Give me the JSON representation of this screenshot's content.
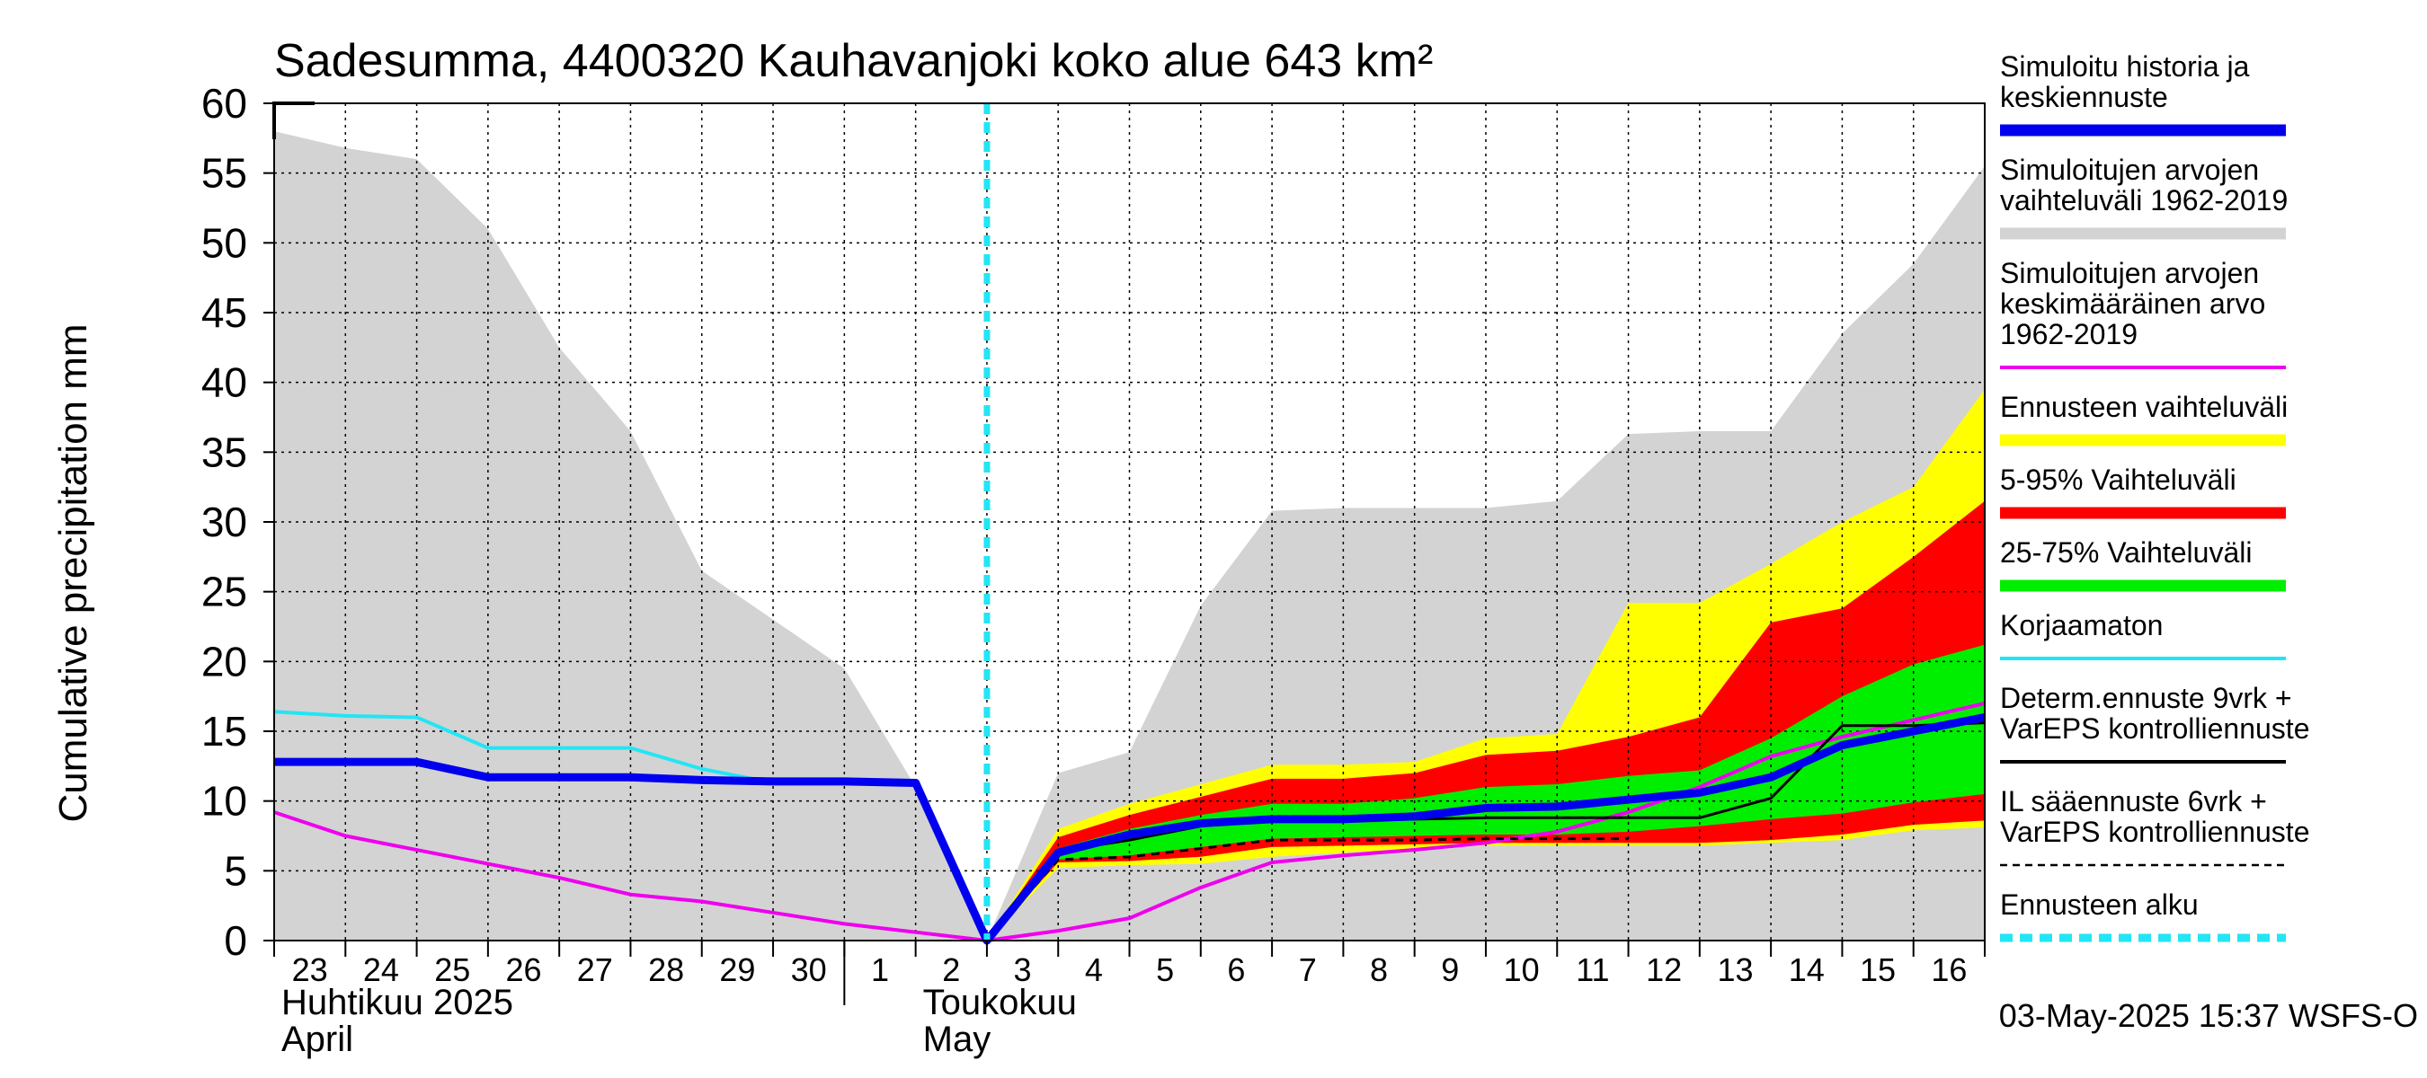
{
  "chart_data": {
    "type": "area",
    "title": "Sadesumma, 4400320 Kauhavanjoki koko alue 643 km²",
    "ylabel": "Cumulative precipitation   mm",
    "ylim": [
      0,
      60
    ],
    "yticks": [
      0,
      5,
      10,
      15,
      20,
      25,
      30,
      35,
      40,
      45,
      50,
      55,
      60
    ],
    "xlim": [
      0,
      24
    ],
    "x_tick_labels": [
      {
        "x": 0.0,
        "label": "23"
      },
      {
        "x": 1.0,
        "label": "24"
      },
      {
        "x": 2.0,
        "label": "25"
      },
      {
        "x": 3.0,
        "label": "26"
      },
      {
        "x": 4.0,
        "label": "27"
      },
      {
        "x": 5.0,
        "label": "28"
      },
      {
        "x": 6.0,
        "label": "29"
      },
      {
        "x": 7.0,
        "label": "30"
      },
      {
        "x": 8.0,
        "label": "1"
      },
      {
        "x": 9.0,
        "label": "2"
      },
      {
        "x": 10.0,
        "label": "3"
      },
      {
        "x": 11.0,
        "label": "4"
      },
      {
        "x": 12.0,
        "label": "5"
      },
      {
        "x": 13.0,
        "label": "6"
      },
      {
        "x": 14.0,
        "label": "7"
      },
      {
        "x": 15.0,
        "label": "8"
      },
      {
        "x": 16.0,
        "label": "9"
      },
      {
        "x": 17.0,
        "label": "10"
      },
      {
        "x": 18.0,
        "label": "11"
      },
      {
        "x": 19.0,
        "label": "12"
      },
      {
        "x": 20.0,
        "label": "13"
      },
      {
        "x": 21.0,
        "label": "14"
      },
      {
        "x": 22.0,
        "label": "15"
      },
      {
        "x": 23.0,
        "label": "16"
      }
    ],
    "month_labels": [
      {
        "x": 0.0,
        "line1": "Huhtikuu  2025",
        "line2": "April"
      },
      {
        "x": 9.0,
        "line1": "Toukokuu",
        "line2": "May"
      }
    ],
    "month_divider_x": 8.0,
    "forecast_start_x": 10.0,
    "grid": true,
    "legend_position": "right",
    "timestamp": "03-May-2025 15:37 WSFS-O",
    "bands": [
      {
        "name": "Simuloitujen arvojen vaihteluväli 1962-2019",
        "color": "#d3d3d3",
        "x": [
          0,
          1,
          2,
          3,
          4,
          5,
          6,
          7,
          8,
          9,
          10,
          11,
          12,
          13,
          14,
          15,
          16,
          17,
          18,
          19,
          20,
          21,
          22,
          23,
          24
        ],
        "upper": [
          58,
          56.8,
          56,
          51,
          42.5,
          36.5,
          26.5,
          23,
          19.5,
          11,
          0,
          12,
          13.5,
          24,
          30.8,
          31,
          31,
          31,
          31.5,
          36.3,
          36.5,
          36.5,
          43.5,
          48.5,
          55.5
        ],
        "lower": [
          0,
          0,
          0,
          0,
          0,
          0,
          0,
          0,
          0,
          0,
          0,
          0,
          0,
          0,
          0,
          0,
          0,
          0,
          0,
          0,
          0,
          0,
          0,
          0,
          0
        ]
      },
      {
        "name": "Ennusteen vaihteluväli",
        "color": "#ffff00",
        "x": [
          10,
          11,
          12,
          13,
          14,
          15,
          16,
          17,
          18,
          19,
          20,
          21,
          22,
          23,
          24
        ],
        "upper": [
          0,
          8,
          9.8,
          11.2,
          12.6,
          12.6,
          12.8,
          14.5,
          14.8,
          24.2,
          24.2,
          27,
          30,
          32.5,
          39.5
        ],
        "lower": [
          0,
          5.2,
          5.4,
          5.5,
          6.0,
          6.3,
          6.6,
          6.8,
          6.8,
          6.8,
          6.8,
          7.0,
          7.2,
          7.9,
          8.1
        ]
      },
      {
        "name": "5-95% Vaihteluväli",
        "color": "#ff0000",
        "x": [
          10,
          11,
          12,
          13,
          14,
          15,
          16,
          17,
          18,
          19,
          20,
          21,
          22,
          23,
          24
        ],
        "upper": [
          0,
          7.4,
          9.0,
          10.3,
          11.6,
          11.6,
          12.0,
          13.3,
          13.6,
          14.6,
          16.0,
          22.8,
          23.8,
          27.5,
          31.5
        ],
        "lower": [
          0,
          5.6,
          5.7,
          6.0,
          6.7,
          6.8,
          6.9,
          7.0,
          7.0,
          7.0,
          7.0,
          7.2,
          7.6,
          8.3,
          8.6
        ]
      },
      {
        "name": "25-75% Vaihteluväli",
        "color": "#00ee00",
        "x": [
          10,
          11,
          12,
          13,
          14,
          15,
          16,
          17,
          18,
          19,
          20,
          21,
          22,
          23,
          24
        ],
        "upper": [
          0,
          6.6,
          8.0,
          9.0,
          9.8,
          9.8,
          10.2,
          11.0,
          11.2,
          11.8,
          12.2,
          14.5,
          17.5,
          19.8,
          21.2
        ],
        "lower": [
          0,
          5.8,
          6.1,
          6.7,
          7.3,
          7.4,
          7.5,
          7.6,
          7.6,
          7.8,
          8.2,
          8.7,
          9.1,
          9.9,
          10.5
        ]
      }
    ],
    "series": [
      {
        "name": "Simuloitujen arvojen keskimääräinen arvo 1962-2019",
        "color": "#ee00ee",
        "width": 4,
        "dash": "",
        "x": [
          0,
          1,
          2,
          3,
          4,
          5,
          6,
          7,
          8,
          9,
          10,
          11,
          12,
          13,
          14,
          15,
          16,
          17,
          18,
          19,
          20,
          21,
          22,
          23,
          24
        ],
        "y": [
          9.2,
          7.5,
          6.5,
          5.5,
          4.5,
          3.3,
          2.8,
          2.0,
          1.2,
          0.6,
          0,
          0.7,
          1.6,
          3.8,
          5.6,
          6.1,
          6.5,
          7.0,
          7.8,
          9.2,
          11.0,
          13.2,
          14.6,
          15.8,
          17.0
        ]
      },
      {
        "name": "Korjaamaton",
        "color": "#22e5f5",
        "width": 4,
        "dash": "",
        "x": [
          0,
          1,
          2,
          3,
          4,
          5,
          6,
          7,
          8,
          9
        ],
        "y": [
          16.4,
          16.1,
          16.0,
          13.8,
          13.8,
          13.8,
          12.3,
          11.3,
          11.3,
          11.3
        ]
      },
      {
        "name": "Determ.ennuste 9vrk + VarEPS kontrolliennuste",
        "color": "#000000",
        "width": 3,
        "dash": "",
        "x": [
          10,
          11,
          12,
          13,
          14,
          15,
          16,
          17,
          18,
          19,
          20,
          21,
          22,
          23,
          24
        ],
        "y": [
          0,
          6.4,
          7.2,
          8.2,
          8.6,
          8.6,
          8.7,
          8.8,
          8.8,
          8.8,
          8.8,
          10.2,
          15.4,
          15.4,
          15.6
        ]
      },
      {
        "name": "IL sääennuste 6vrk + VarEPS kontrolliennuste",
        "color": "#000000",
        "width": 3,
        "dash": "9,7",
        "x": [
          10,
          11,
          12,
          13,
          14,
          15,
          16,
          17,
          18,
          19
        ],
        "y": [
          0,
          5.8,
          6.0,
          6.6,
          7.2,
          7.2,
          7.2,
          7.3,
          7.3,
          7.3
        ]
      },
      {
        "name": "Simuloitu historia ja keskiennuste",
        "color": "#0000ee",
        "width": 9,
        "dash": "",
        "x": [
          0,
          1,
          2,
          3,
          4,
          5,
          6,
          7,
          8,
          9,
          10,
          11,
          12,
          13,
          14,
          15,
          16,
          17,
          18,
          19,
          20,
          21,
          22,
          23,
          24
        ],
        "y": [
          12.8,
          12.8,
          12.8,
          11.7,
          11.7,
          11.7,
          11.5,
          11.4,
          11.4,
          11.3,
          0,
          6.3,
          7.6,
          8.4,
          8.7,
          8.7,
          8.9,
          9.5,
          9.6,
          10.1,
          10.6,
          11.7,
          14.0,
          15.0,
          16.0
        ]
      }
    ]
  },
  "legend": [
    {
      "lines": [
        "Simuloitu historia ja",
        "keskiennuste"
      ],
      "color": "#0000ee",
      "style": "thick"
    },
    {
      "lines": [
        "Simuloitujen arvojen",
        "vaihteluväli 1962-2019"
      ],
      "color": "#d3d3d3",
      "style": "thick"
    },
    {
      "lines": [
        "Simuloitujen arvojen",
        "keskimääräinen arvo",
        "   1962-2019"
      ],
      "color": "#ee00ee",
      "style": "thin"
    },
    {
      "lines": [
        "Ennusteen vaihteluväli"
      ],
      "color": "#ffff00",
      "style": "thick"
    },
    {
      "lines": [
        "5-95% Vaihteluväli"
      ],
      "color": "#ff0000",
      "style": "thick"
    },
    {
      "lines": [
        "25-75% Vaihteluväli"
      ],
      "color": "#00ee00",
      "style": "thick"
    },
    {
      "lines": [
        "Korjaamaton"
      ],
      "color": "#22e5f5",
      "style": "thin"
    },
    {
      "lines": [
        "Determ.ennuste 9vrk +",
        "VarEPS kontrolliennuste"
      ],
      "color": "#000000",
      "style": "thin"
    },
    {
      "lines": [
        "IL sääennuste 6vrk  +",
        "  VarEPS kontrolliennuste"
      ],
      "color": "#000000",
      "style": "dashed"
    },
    {
      "lines": [
        "Ennusteen alku"
      ],
      "color": "#22e5f5",
      "style": "dotted"
    }
  ]
}
